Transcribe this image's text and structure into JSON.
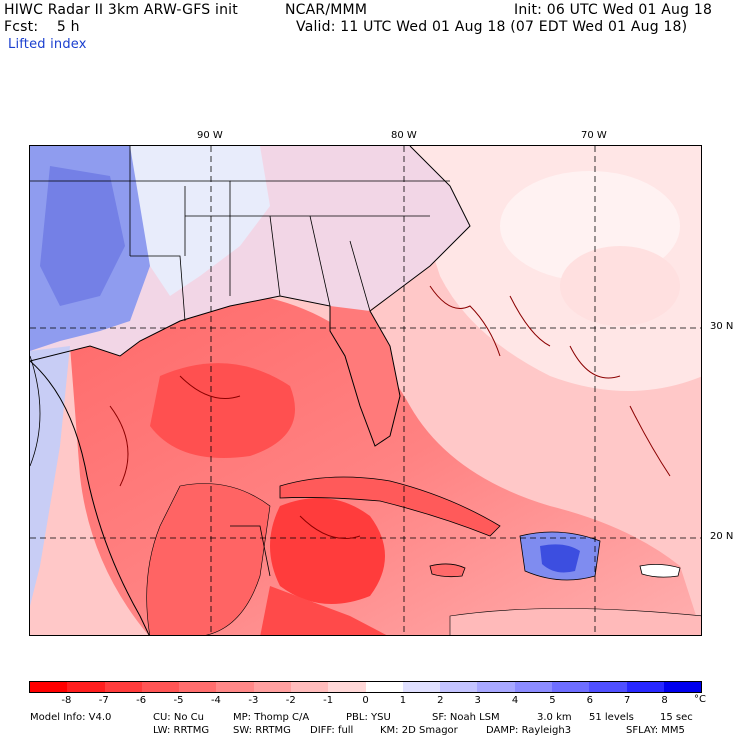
{
  "header": {
    "title": "HIWC Radar II 3km ARW-GFS init",
    "org": "NCAR/MMM",
    "init": "Init: 06 UTC Wed 01 Aug 18",
    "fcst": "Fcst:    5 h",
    "valid": "Valid: 11 UTC Wed 01 Aug 18 (07 EDT Wed 01 Aug 18)",
    "field": "Lifted index"
  },
  "map": {
    "lon_labels": [
      "90 W",
      "80 W",
      "70 W"
    ],
    "lat_labels": [
      "30 N",
      "20 N"
    ],
    "colors": {
      "land_cool": "#eef0fb",
      "border": "#000000",
      "grid": "#000000",
      "ocean": "#ffdada"
    }
  },
  "colorbar": {
    "unit": "°C",
    "labels": [
      "-8",
      "-7",
      "-6",
      "-5",
      "-4",
      "-3",
      "-2",
      "-1",
      "0",
      "1",
      "2",
      "3",
      "4",
      "5",
      "6",
      "7",
      "8"
    ],
    "colors": [
      "#ff0000",
      "#ff1e1e",
      "#ff3c3c",
      "#ff5555",
      "#ff6e6e",
      "#ff8888",
      "#ffa0a0",
      "#ffbcbc",
      "#ffd8d8",
      "#ffffff",
      "#e0e0ff",
      "#c4c4ff",
      "#a8a8ff",
      "#8c8cff",
      "#6e6eff",
      "#5050ff",
      "#2828ff",
      "#0000ee"
    ]
  },
  "footer": {
    "line1": {
      "model_info": "Model Info: V4.0",
      "cu": "CU: No Cu",
      "mp": "MP: Thomp C/A",
      "pbl": "PBL: YSU",
      "sf": "SF: Noah LSM",
      "res": "3.0 km",
      "levels": "51 levels",
      "dt": "15 sec"
    },
    "line2": {
      "lw": "LW: RRTMG",
      "sw": "SW: RRTMG",
      "diff": "DIFF: full",
      "km": "KM: 2D Smagor",
      "damp": "DAMP: Rayleigh3",
      "sflay": "SFLAY: MM5"
    }
  }
}
